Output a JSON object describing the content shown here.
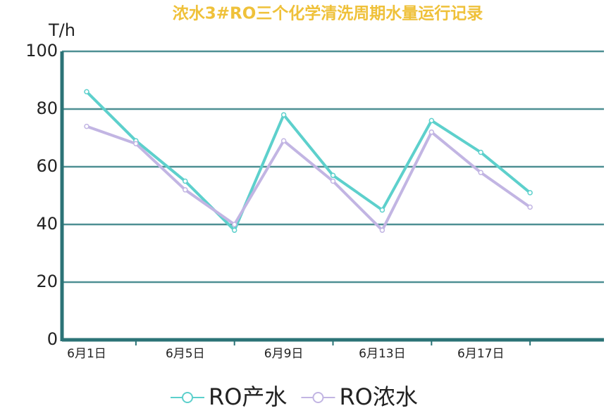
{
  "chart_data": {
    "type": "line",
    "title": "浓水3#RO三个化学清洗周期水量运行记录",
    "y_label": "T/h",
    "categories": [
      "6月1日",
      null,
      "6月5日",
      null,
      "6月9日",
      null,
      "6月13日",
      null,
      "6月17日",
      null
    ],
    "series": [
      {
        "name": "RO产水",
        "color": "#5dd0cc",
        "values": [
          86,
          69,
          55,
          38,
          78,
          57,
          45,
          76,
          65,
          51
        ]
      },
      {
        "name": "RO浓水",
        "color": "#c2b5e3",
        "values": [
          74,
          68,
          52,
          40,
          69,
          55,
          38,
          72,
          58,
          46
        ]
      }
    ],
    "ylim": [
      0,
      100
    ],
    "yticks": [
      0,
      20,
      40,
      60,
      80,
      100
    ],
    "grid": true
  }
}
